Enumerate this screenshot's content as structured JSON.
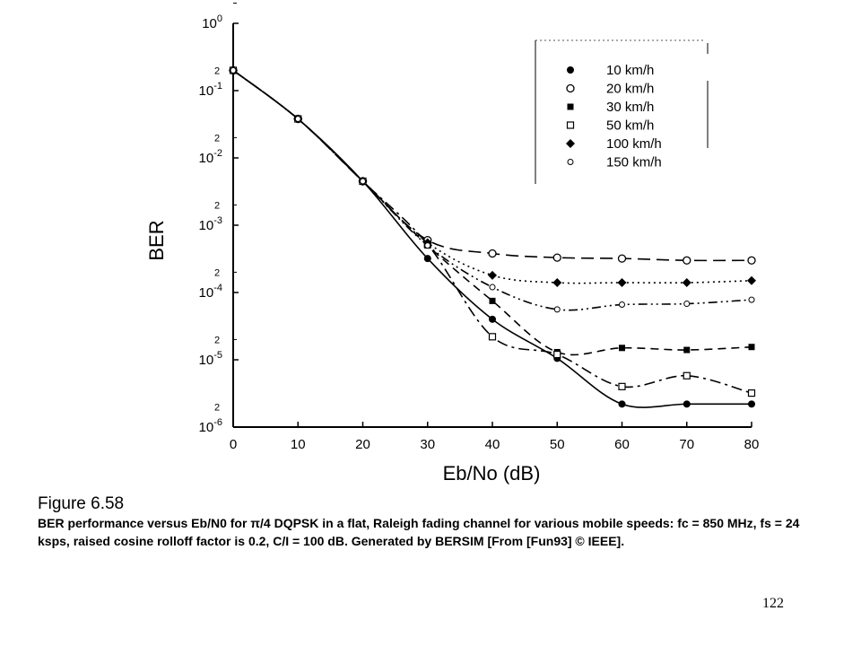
{
  "chart_data": {
    "type": "line",
    "xlabel": "Eb/No (dB)",
    "ylabel": "BER",
    "xlim": [
      0,
      80
    ],
    "ylim": [
      1e-06,
      1
    ],
    "yscale": "log",
    "grid": false,
    "legend_position": "top-right",
    "x_ticks": [
      "0",
      "10",
      "20",
      "30",
      "40",
      "50",
      "60",
      "70",
      "80"
    ],
    "y_ticks": [
      {
        "base": "10",
        "exp": "0",
        "value": 1
      },
      {
        "base": "10",
        "exp": "-1",
        "value": 0.1
      },
      {
        "base": "10",
        "exp": "-2",
        "value": 0.01
      },
      {
        "base": "10",
        "exp": "-3",
        "value": 0.001
      },
      {
        "base": "10",
        "exp": "-4",
        "value": 0.0001
      },
      {
        "base": "10",
        "exp": "-5",
        "value": 1e-05
      },
      {
        "base": "10",
        "exp": "-6",
        "value": 1e-06
      }
    ],
    "minor_tick_label": "2",
    "x": [
      0,
      10,
      20,
      30,
      40,
      50,
      60,
      70,
      80
    ],
    "series": [
      {
        "name": "10 km/h",
        "marker": "circle-filled",
        "dash": "solid",
        "values": [
          0.2,
          0.038,
          0.0045,
          0.00032,
          4e-05,
          1.05e-05,
          2.2e-06,
          2.2e-06,
          2.2e-06
        ]
      },
      {
        "name": "20 km/h",
        "marker": "circle-open",
        "dash": "long-dash",
        "values": [
          0.2,
          0.038,
          0.0045,
          0.0006,
          0.00038,
          0.00033,
          0.00032,
          0.0003,
          0.0003
        ]
      },
      {
        "name": "30 km/h",
        "marker": "square-filled",
        "dash": "dash",
        "values": [
          0.2,
          0.038,
          0.0045,
          0.0005,
          7.5e-05,
          1.3e-05,
          1.5e-05,
          1.4e-05,
          1.55e-05
        ]
      },
      {
        "name": "50 km/h",
        "marker": "square-open",
        "dash": "dash-dot",
        "values": [
          0.2,
          0.038,
          0.0045,
          0.00052,
          2.2e-05,
          1.2e-05,
          4e-06,
          5.8e-06,
          3.2e-06
        ]
      },
      {
        "name": "100 km/h",
        "marker": "diamond-filled",
        "dash": "dot",
        "values": [
          0.2,
          0.038,
          0.0045,
          0.00055,
          0.00018,
          0.00014,
          0.00014,
          0.00014,
          0.00015
        ]
      },
      {
        "name": "150 km/h",
        "marker": "circle-open-small",
        "dash": "dash-dot-dot",
        "values": [
          0.2,
          0.038,
          0.0045,
          0.0005,
          0.00012,
          5.6e-05,
          6.6e-05,
          6.8e-05,
          7.8e-05
        ]
      }
    ]
  },
  "caption": {
    "title": "Figure 6.58",
    "body": "BER performance versus Eb/N0 for π/4 DQPSK in a flat, Raleigh fading channel for various mobile speeds: fc = 850 MHz, fs = 24 ksps, raised cosine rolloff factor is 0.2, C/I = 100 dB. Generated by BERSIM [From [Fun93] © IEEE]."
  },
  "page_number": "122"
}
